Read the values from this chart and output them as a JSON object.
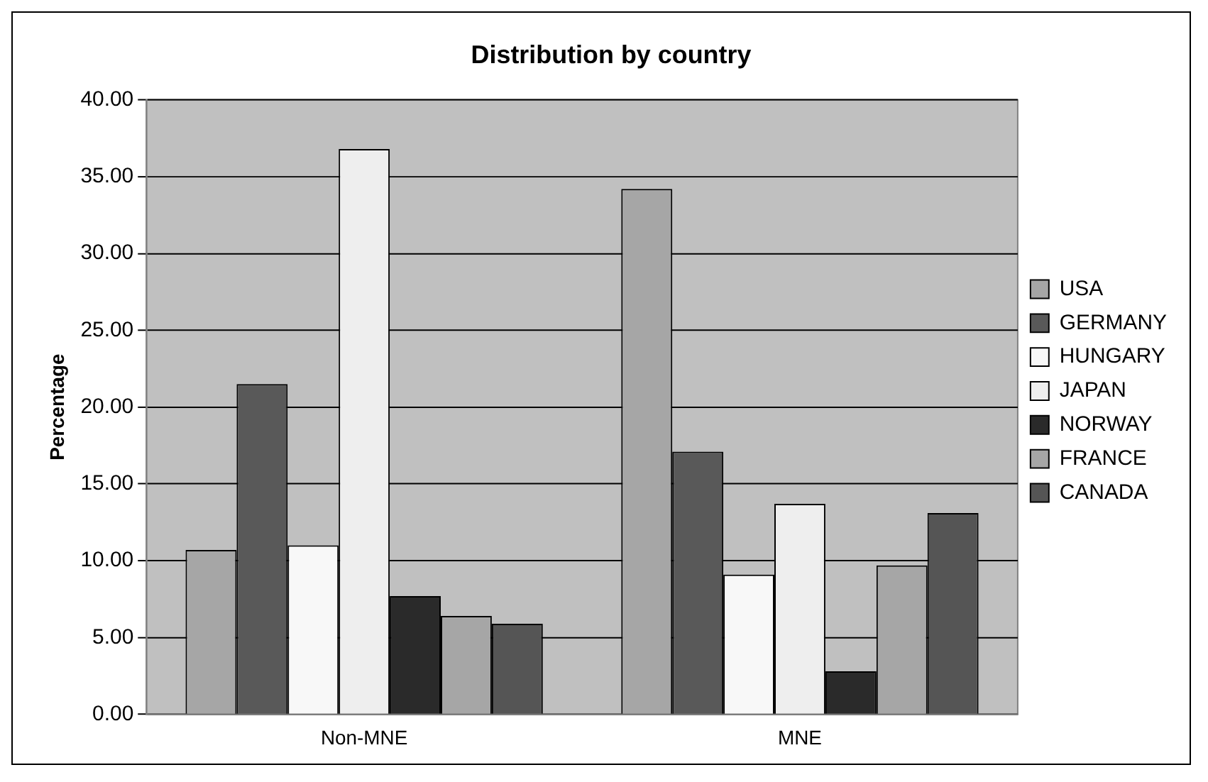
{
  "chart_data": {
    "type": "bar",
    "title": "Distribution by country",
    "ylabel": "Percentage",
    "categories": [
      "Non-MNE",
      "MNE"
    ],
    "series": [
      {
        "name": "USA",
        "color": "#a6a6a6",
        "values": [
          10.7,
          34.2
        ]
      },
      {
        "name": "GERMANY",
        "color": "#595959",
        "values": [
          21.5,
          17.1
        ]
      },
      {
        "name": "HUNGARY",
        "color": "#f8f8f8",
        "values": [
          11.0,
          9.1
        ]
      },
      {
        "name": "JAPAN",
        "color": "#eeeeee",
        "values": [
          36.8,
          13.7
        ]
      },
      {
        "name": "NORWAY",
        "color": "#2a2a2a",
        "values": [
          7.7,
          2.8
        ]
      },
      {
        "name": "FRANCE",
        "color": "#a6a6a6",
        "values": [
          6.4,
          9.7
        ]
      },
      {
        "name": "CANADA",
        "color": "#555555",
        "values": [
          5.9,
          13.1
        ]
      }
    ],
    "ylim": [
      0,
      40
    ],
    "yticks": [
      {
        "value": 0,
        "label": "0.00"
      },
      {
        "value": 5,
        "label": "5.00"
      },
      {
        "value": 10,
        "label": "10.00"
      },
      {
        "value": 15,
        "label": "15.00"
      },
      {
        "value": 20,
        "label": "20.00"
      },
      {
        "value": 25,
        "label": "25.00"
      },
      {
        "value": 30,
        "label": "30.00"
      },
      {
        "value": 35,
        "label": "35.00"
      },
      {
        "value": 40,
        "label": "40.00"
      }
    ],
    "grid": "y",
    "legend": "right"
  }
}
